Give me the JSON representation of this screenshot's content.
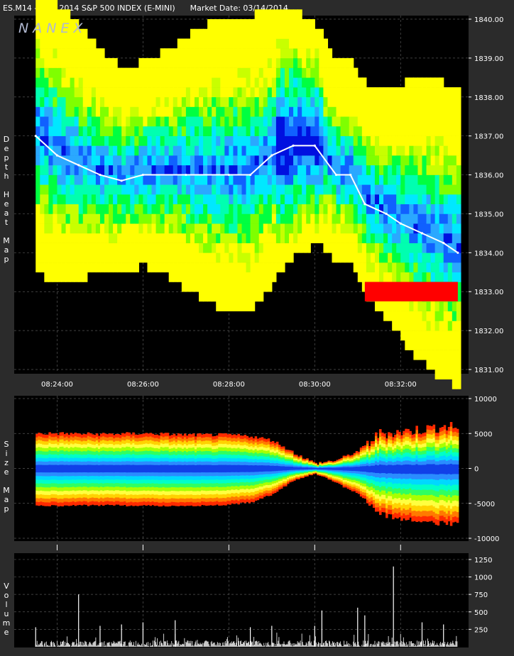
{
  "header": {
    "title": "ES.M14 - June 2014 S&P 500 INDEX (E-MINI)",
    "market_date": "Market Date: 03/14/2014"
  },
  "watermark": "NANEX",
  "colors": {
    "background": "#000000",
    "frame": "#2b2b2b",
    "grid": "#555555",
    "trade_price_line": "#ffffff",
    "heat_scale": [
      "#ff0000",
      "#ff6a00",
      "#ffd000",
      "#ffff00",
      "#c8ff00",
      "#7fff00",
      "#00ff40",
      "#00ffb0",
      "#00e8ff",
      "#2aa8ff",
      "#1060ff",
      "#0010e0"
    ]
  },
  "chart_data": [
    {
      "type": "heatmap",
      "name": "depth-heat-map",
      "ylabel": "Depth Heat Map",
      "xticks": [
        "08:24:00",
        "08:26:00",
        "08:28:00",
        "08:30:00",
        "08:32:00"
      ],
      "yticks": [
        "1840.00",
        "1839.00",
        "1838.00",
        "1837.00",
        "1836.00",
        "1835.00",
        "1834.00",
        "1833.00",
        "1832.00",
        "1831.00"
      ],
      "ylim": [
        1831.0,
        1840.0
      ],
      "xlim_minutes": [
        8.2333,
        8.5583
      ],
      "grid": true,
      "trade_price": {
        "t": [
          "08:23:30",
          "08:24:00",
          "08:24:30",
          "08:25:00",
          "08:25:30",
          "08:26:00",
          "08:27:00",
          "08:28:00",
          "08:28:30",
          "08:29:00",
          "08:29:30",
          "08:30:00",
          "08:30:30",
          "08:30:50",
          "08:31:10",
          "08:31:40",
          "08:32:00",
          "08:32:30",
          "08:33:00",
          "08:33:20"
        ],
        "price": [
          1837.0,
          1836.5,
          1836.25,
          1836.0,
          1835.85,
          1836.0,
          1836.0,
          1836.0,
          1836.0,
          1836.5,
          1836.75,
          1836.75,
          1836.0,
          1836.0,
          1835.25,
          1835.0,
          1834.75,
          1834.5,
          1834.25,
          1834.0
        ]
      },
      "price_bands": [
        {
          "price": 1839.25,
          "level": 5
        },
        {
          "price": 1838.75,
          "level": 5
        },
        {
          "price": 1838.25,
          "level": 4
        },
        {
          "price": 1837.75,
          "level": 6
        },
        {
          "price": 1837.25,
          "level": 7
        },
        {
          "price": 1836.75,
          "level": 8
        },
        {
          "price": 1836.25,
          "level": 9
        },
        {
          "price": 1835.75,
          "level": 9
        },
        {
          "price": 1835.25,
          "level": 8
        },
        {
          "price": 1834.75,
          "level": 7
        },
        {
          "price": 1834.25,
          "level": 5
        },
        {
          "price": 1833.75,
          "level": 4
        }
      ],
      "ask_wall": {
        "price_low": 1832.75,
        "price_high": 1833.25,
        "start": "08:31:10",
        "end": "08:33:20",
        "color": "#ff0000"
      }
    },
    {
      "type": "area",
      "name": "size-map",
      "ylabel": "Size Map",
      "yticks": [
        "10000",
        "5000",
        "0",
        "-5000",
        "-10000"
      ],
      "ylim": [
        -10000,
        10000
      ],
      "grid": true,
      "upper_envelope": {
        "t": [
          "08:23:30",
          "08:24:00",
          "08:25:00",
          "08:26:00",
          "08:27:00",
          "08:28:00",
          "08:28:30",
          "08:29:00",
          "08:29:30",
          "08:30:00",
          "08:30:30",
          "08:31:00",
          "08:31:30",
          "08:32:00",
          "08:32:30",
          "08:33:00",
          "08:33:20"
        ],
        "size": [
          5000,
          5000,
          4900,
          5000,
          4800,
          4800,
          4600,
          4000,
          2200,
          700,
          1200,
          2500,
          5000,
          5200,
          5600,
          6000,
          5900
        ]
      },
      "lower_envelope": {
        "t": [
          "08:23:30",
          "08:24:00",
          "08:25:00",
          "08:26:00",
          "08:27:00",
          "08:28:00",
          "08:28:30",
          "08:29:00",
          "08:29:30",
          "08:30:00",
          "08:30:30",
          "08:31:00",
          "08:31:30",
          "08:32:00",
          "08:32:30",
          "08:33:00",
          "08:33:20"
        ],
        "size": [
          -5200,
          -5200,
          -5100,
          -5200,
          -5200,
          -5000,
          -4700,
          -3500,
          -1500,
          -600,
          -2000,
          -3500,
          -6000,
          -7000,
          -7000,
          -7500,
          -7500
        ]
      }
    },
    {
      "type": "bar",
      "name": "volume",
      "ylabel": "Volume",
      "yticks": [
        "1250",
        "1000",
        "750",
        "500",
        "250"
      ],
      "ylim": [
        0,
        1300
      ],
      "grid": true,
      "spikes": [
        {
          "t": "08:23:30",
          "v": 280
        },
        {
          "t": "08:24:30",
          "v": 750
        },
        {
          "t": "08:25:00",
          "v": 300
        },
        {
          "t": "08:25:30",
          "v": 320
        },
        {
          "t": "08:26:00",
          "v": 350
        },
        {
          "t": "08:26:45",
          "v": 380
        },
        {
          "t": "08:28:30",
          "v": 280
        },
        {
          "t": "08:29:00",
          "v": 300
        },
        {
          "t": "08:30:00",
          "v": 300
        },
        {
          "t": "08:30:10",
          "v": 520
        },
        {
          "t": "08:31:00",
          "v": 560
        },
        {
          "t": "08:31:10",
          "v": 450
        },
        {
          "t": "08:31:50",
          "v": 1150
        },
        {
          "t": "08:32:30",
          "v": 350
        },
        {
          "t": "08:33:00",
          "v": 320
        }
      ],
      "baseline": 90
    }
  ]
}
